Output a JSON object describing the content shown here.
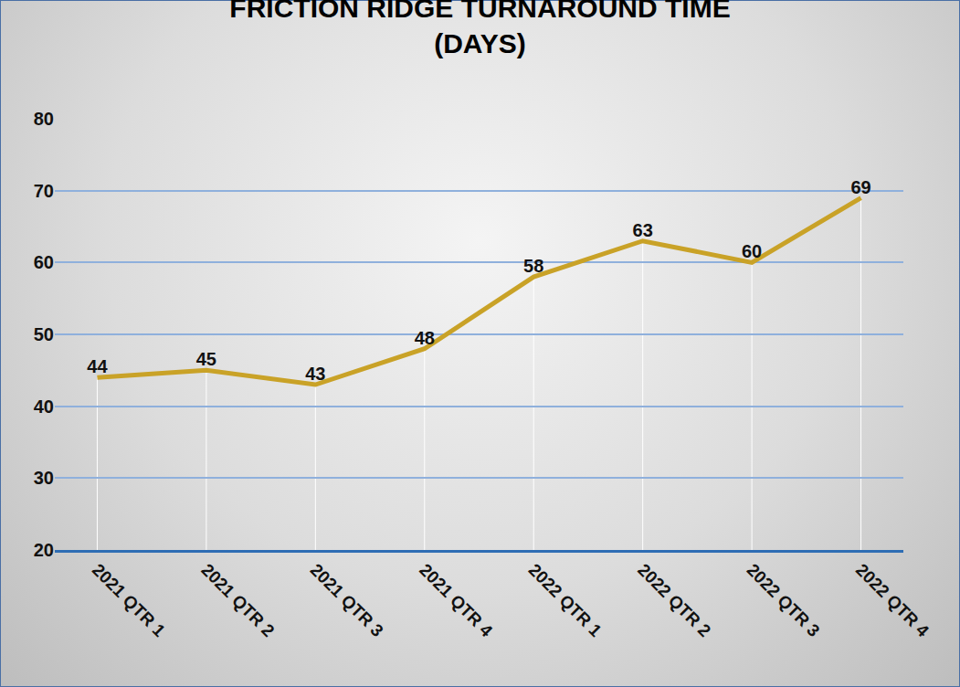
{
  "chart_data": {
    "type": "line",
    "title": "FRICTION RIDGE TURNAROUND TIME (DAYS)",
    "categories": [
      "2021 QTR 1",
      "2021 QTR 2",
      "2021 QTR 3",
      "2021 QTR 4",
      "2022 QTR 1",
      "2022 QTR 2",
      "2022 QTR 3",
      "2022 QTR 4"
    ],
    "values": [
      44,
      45,
      43,
      48,
      58,
      63,
      60,
      69
    ],
    "color": "#c9a227",
    "ylim": [
      20,
      80
    ],
    "yticks": [
      20,
      30,
      40,
      50,
      60,
      70,
      80
    ],
    "grid": true,
    "data_labels": true
  }
}
